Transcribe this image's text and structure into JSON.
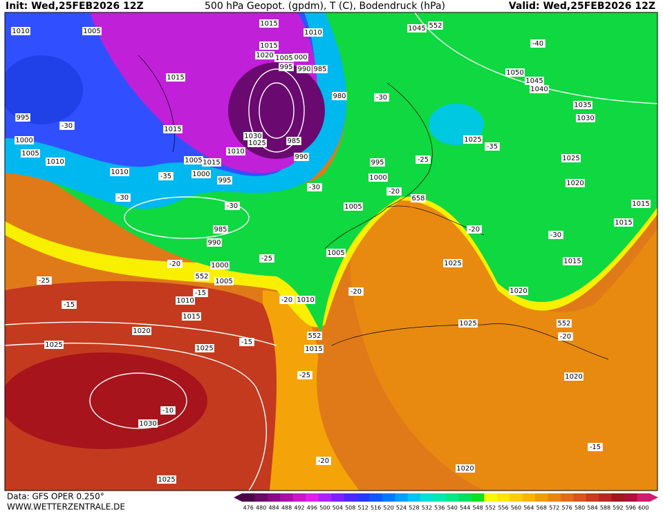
{
  "header": {
    "init": "Init: Wed,25FEB2026 12Z",
    "title": "500 hPa Geopot. (gpdm), T (C), Bodendruck (hPa)",
    "valid": "Valid: Wed,25FEB2026 12Z"
  },
  "footer": {
    "data": "Data: GFS OPER 0.250°",
    "site": "WWW.WETTERZENTRALE.DE"
  },
  "colorbar": {
    "ticks": [
      476,
      480,
      484,
      488,
      492,
      496,
      500,
      504,
      508,
      512,
      516,
      520,
      524,
      528,
      532,
      536,
      540,
      544,
      548,
      552,
      556,
      560,
      564,
      568,
      572,
      576,
      580,
      584,
      588,
      592,
      596,
      600
    ],
    "colors": [
      "#4a0848",
      "#6a0a6a",
      "#8a0a8a",
      "#a810a8",
      "#c818c8",
      "#e020e8",
      "#b020f8",
      "#8020ff",
      "#5028ff",
      "#2838ff",
      "#1058ff",
      "#0078ff",
      "#00a0ff",
      "#00c4f0",
      "#00e0d8",
      "#00e8b0",
      "#00e888",
      "#00e060",
      "#10e020",
      "#f8f800",
      "#ffe400",
      "#ffcc00",
      "#fcb400",
      "#f09c08",
      "#e88410",
      "#e06c18",
      "#d85420",
      "#c83c20",
      "#b82820",
      "#a01820",
      "#b0103c",
      "#d01c70"
    ]
  },
  "map": {
    "labels": [
      "1010",
      "1005",
      "1015",
      "1010",
      "1045",
      "552",
      "1015",
      "1020",
      "1005",
      "000",
      "995",
      "990",
      "985",
      "-40",
      "1015",
      "1050",
      "1045",
      "1040",
      "980",
      "-30",
      "995",
      "-30",
      "1015",
      "1035",
      "1030",
      "1000",
      "1030",
      "1025",
      "985",
      "1025",
      "-35",
      "1005",
      "1010",
      "1010",
      "990",
      "1005",
      "1015",
      "995",
      "-25",
      "1025",
      "1010",
      "-35",
      "1000",
      "995",
      "1000",
      "-30",
      "-20",
      "1020",
      "-30",
      "658",
      "1005",
      "-30",
      "1015",
      "1015",
      "985",
      "-20",
      "-30",
      "990",
      "1005",
      "-25",
      "1025",
      "1015",
      "-20",
      "1000",
      "-25",
      "552",
      "1005",
      "1010",
      "-15",
      "-20",
      "1010",
      "-20",
      "1020",
      "-15",
      "1015",
      "1025",
      "552",
      "1020",
      "552",
      "-20",
      "1025",
      "1025",
      "-15",
      "1015",
      "-25",
      "1020",
      "-10",
      "1030",
      "-15",
      "-20",
      "1020",
      "1025"
    ]
  }
}
